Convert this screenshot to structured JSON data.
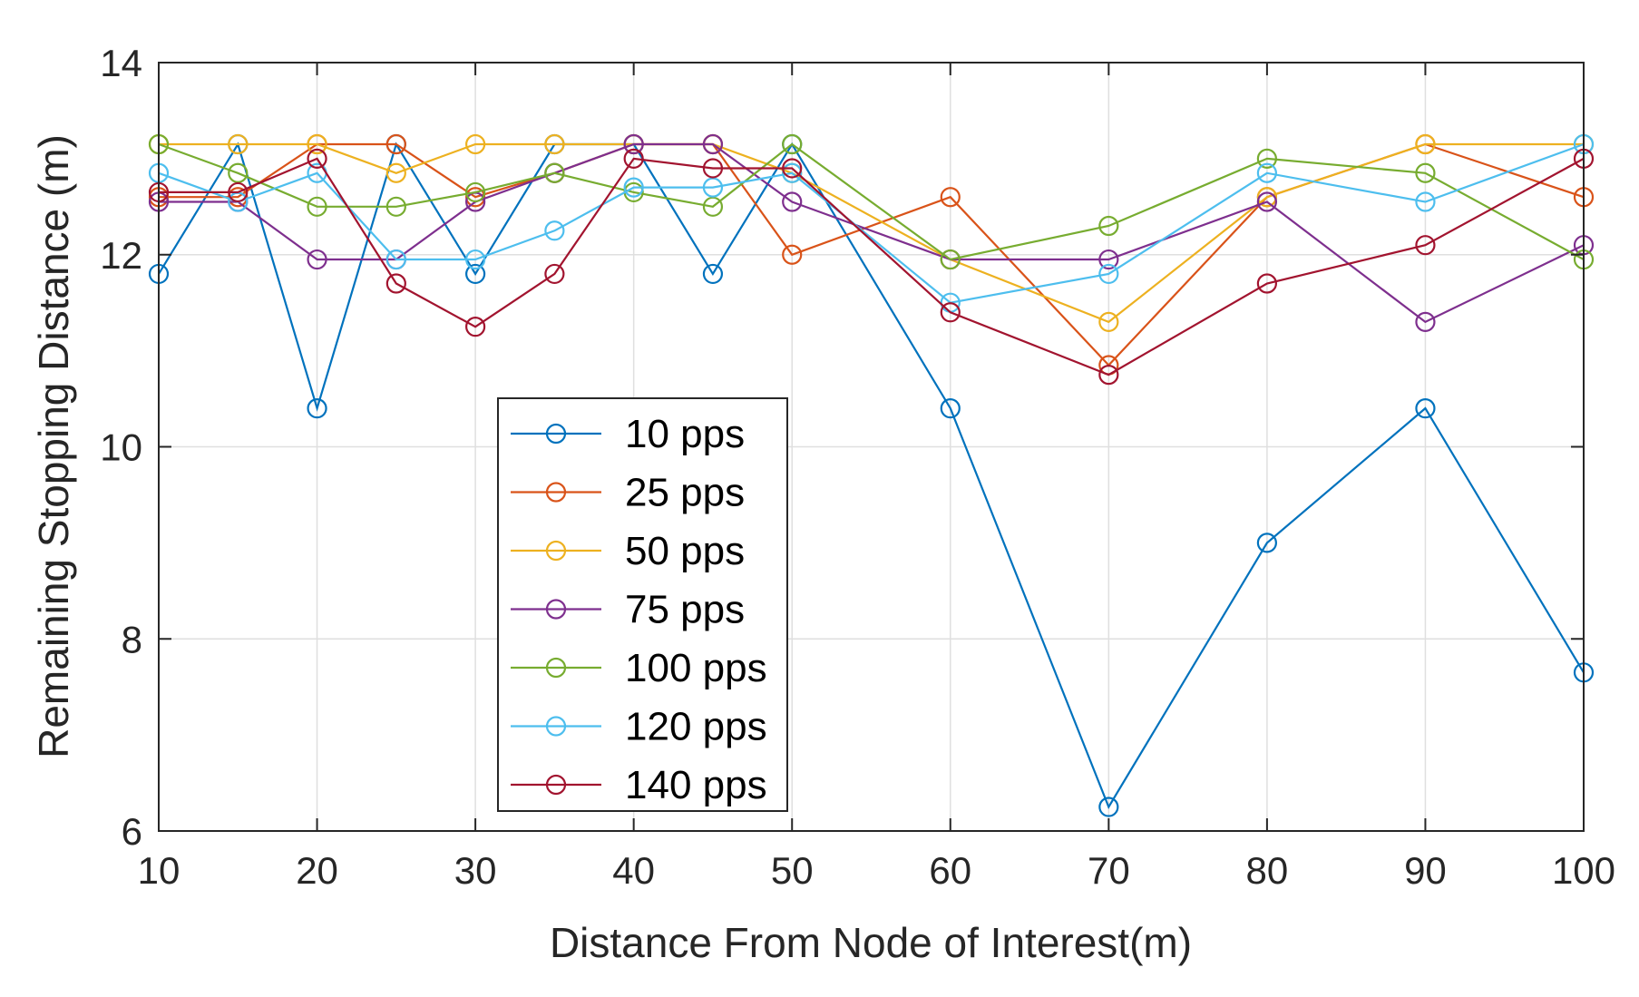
{
  "chart_data": {
    "type": "line",
    "title": "",
    "xlabel": "Distance From Node of Interest(m)",
    "ylabel": "Remaining Stopping Distance (m)",
    "xlim": [
      10,
      100
    ],
    "ylim": [
      6,
      14
    ],
    "xticks": [
      10,
      20,
      30,
      40,
      50,
      60,
      70,
      80,
      90,
      100
    ],
    "yticks": [
      6,
      8,
      10,
      12,
      14
    ],
    "xtick_labels": [
      "10",
      "20",
      "30",
      "40",
      "50",
      "60",
      "70",
      "80",
      "90",
      "100"
    ],
    "ytick_labels": [
      "6",
      "8",
      "10",
      "12",
      "14"
    ],
    "grid": true,
    "legend_position": "center-left",
    "x": [
      10,
      15,
      20,
      25,
      30,
      35,
      40,
      45,
      50,
      60,
      70,
      80,
      90,
      100
    ],
    "series": [
      {
        "name": "10 pps",
        "color": "#0072BD",
        "values": [
          11.8,
          13.15,
          10.4,
          13.15,
          11.8,
          13.15,
          13.15,
          11.8,
          13.15,
          10.4,
          6.25,
          9.0,
          10.4,
          7.65
        ]
      },
      {
        "name": "25 pps",
        "color": "#D95319",
        "values": [
          12.6,
          12.6,
          13.15,
          13.15,
          12.6,
          12.85,
          13.15,
          13.15,
          12.0,
          12.6,
          10.85,
          12.6,
          13.15,
          12.6
        ]
      },
      {
        "name": "50 pps",
        "color": "#EDB120",
        "values": [
          13.15,
          13.15,
          13.15,
          12.85,
          13.15,
          13.15,
          13.15,
          13.15,
          12.85,
          11.95,
          11.3,
          12.6,
          13.15,
          13.15
        ]
      },
      {
        "name": "75 pps",
        "color": "#7E2F8E",
        "values": [
          12.55,
          12.55,
          11.95,
          11.95,
          12.55,
          12.85,
          13.15,
          13.15,
          12.55,
          11.95,
          11.95,
          12.55,
          11.3,
          12.1
        ]
      },
      {
        "name": "100 pps",
        "color": "#77AC30",
        "values": [
          13.15,
          12.85,
          12.5,
          12.5,
          12.65,
          12.85,
          12.65,
          12.5,
          13.15,
          11.95,
          12.3,
          13.0,
          12.85,
          11.95
        ]
      },
      {
        "name": "120 pps",
        "color": "#4DBEEE",
        "values": [
          12.85,
          12.55,
          12.85,
          11.95,
          11.95,
          12.25,
          12.7,
          12.7,
          12.85,
          11.5,
          11.8,
          12.85,
          12.55,
          13.15
        ]
      },
      {
        "name": "140 pps",
        "color": "#A2142F",
        "values": [
          12.65,
          12.65,
          13.0,
          11.7,
          11.25,
          11.8,
          13.0,
          12.9,
          12.9,
          11.4,
          10.75,
          11.7,
          12.1,
          13.0
        ]
      }
    ]
  }
}
